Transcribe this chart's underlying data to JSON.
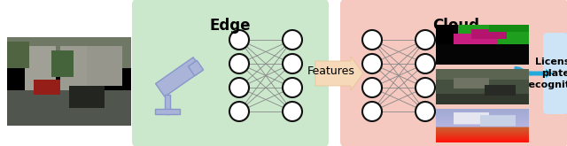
{
  "edge_label": "Edge",
  "cloud_label": "Cloud",
  "features_label": "Features",
  "license_label": "License\nplate\nrecognition",
  "edge_bg": "#cce8cc",
  "cloud_bg": "#f5c8c0",
  "license_bg": "#cce4f5",
  "arrow_color": "#f5d9b8",
  "blue_arrow": "#22aadd",
  "figsize": [
    6.4,
    1.65
  ],
  "dpi": 100,
  "nn_line_color": "#888888",
  "node_edge_color": "#111111",
  "cam_fill": "#aab4d8",
  "cam_stroke": "#8898cc"
}
